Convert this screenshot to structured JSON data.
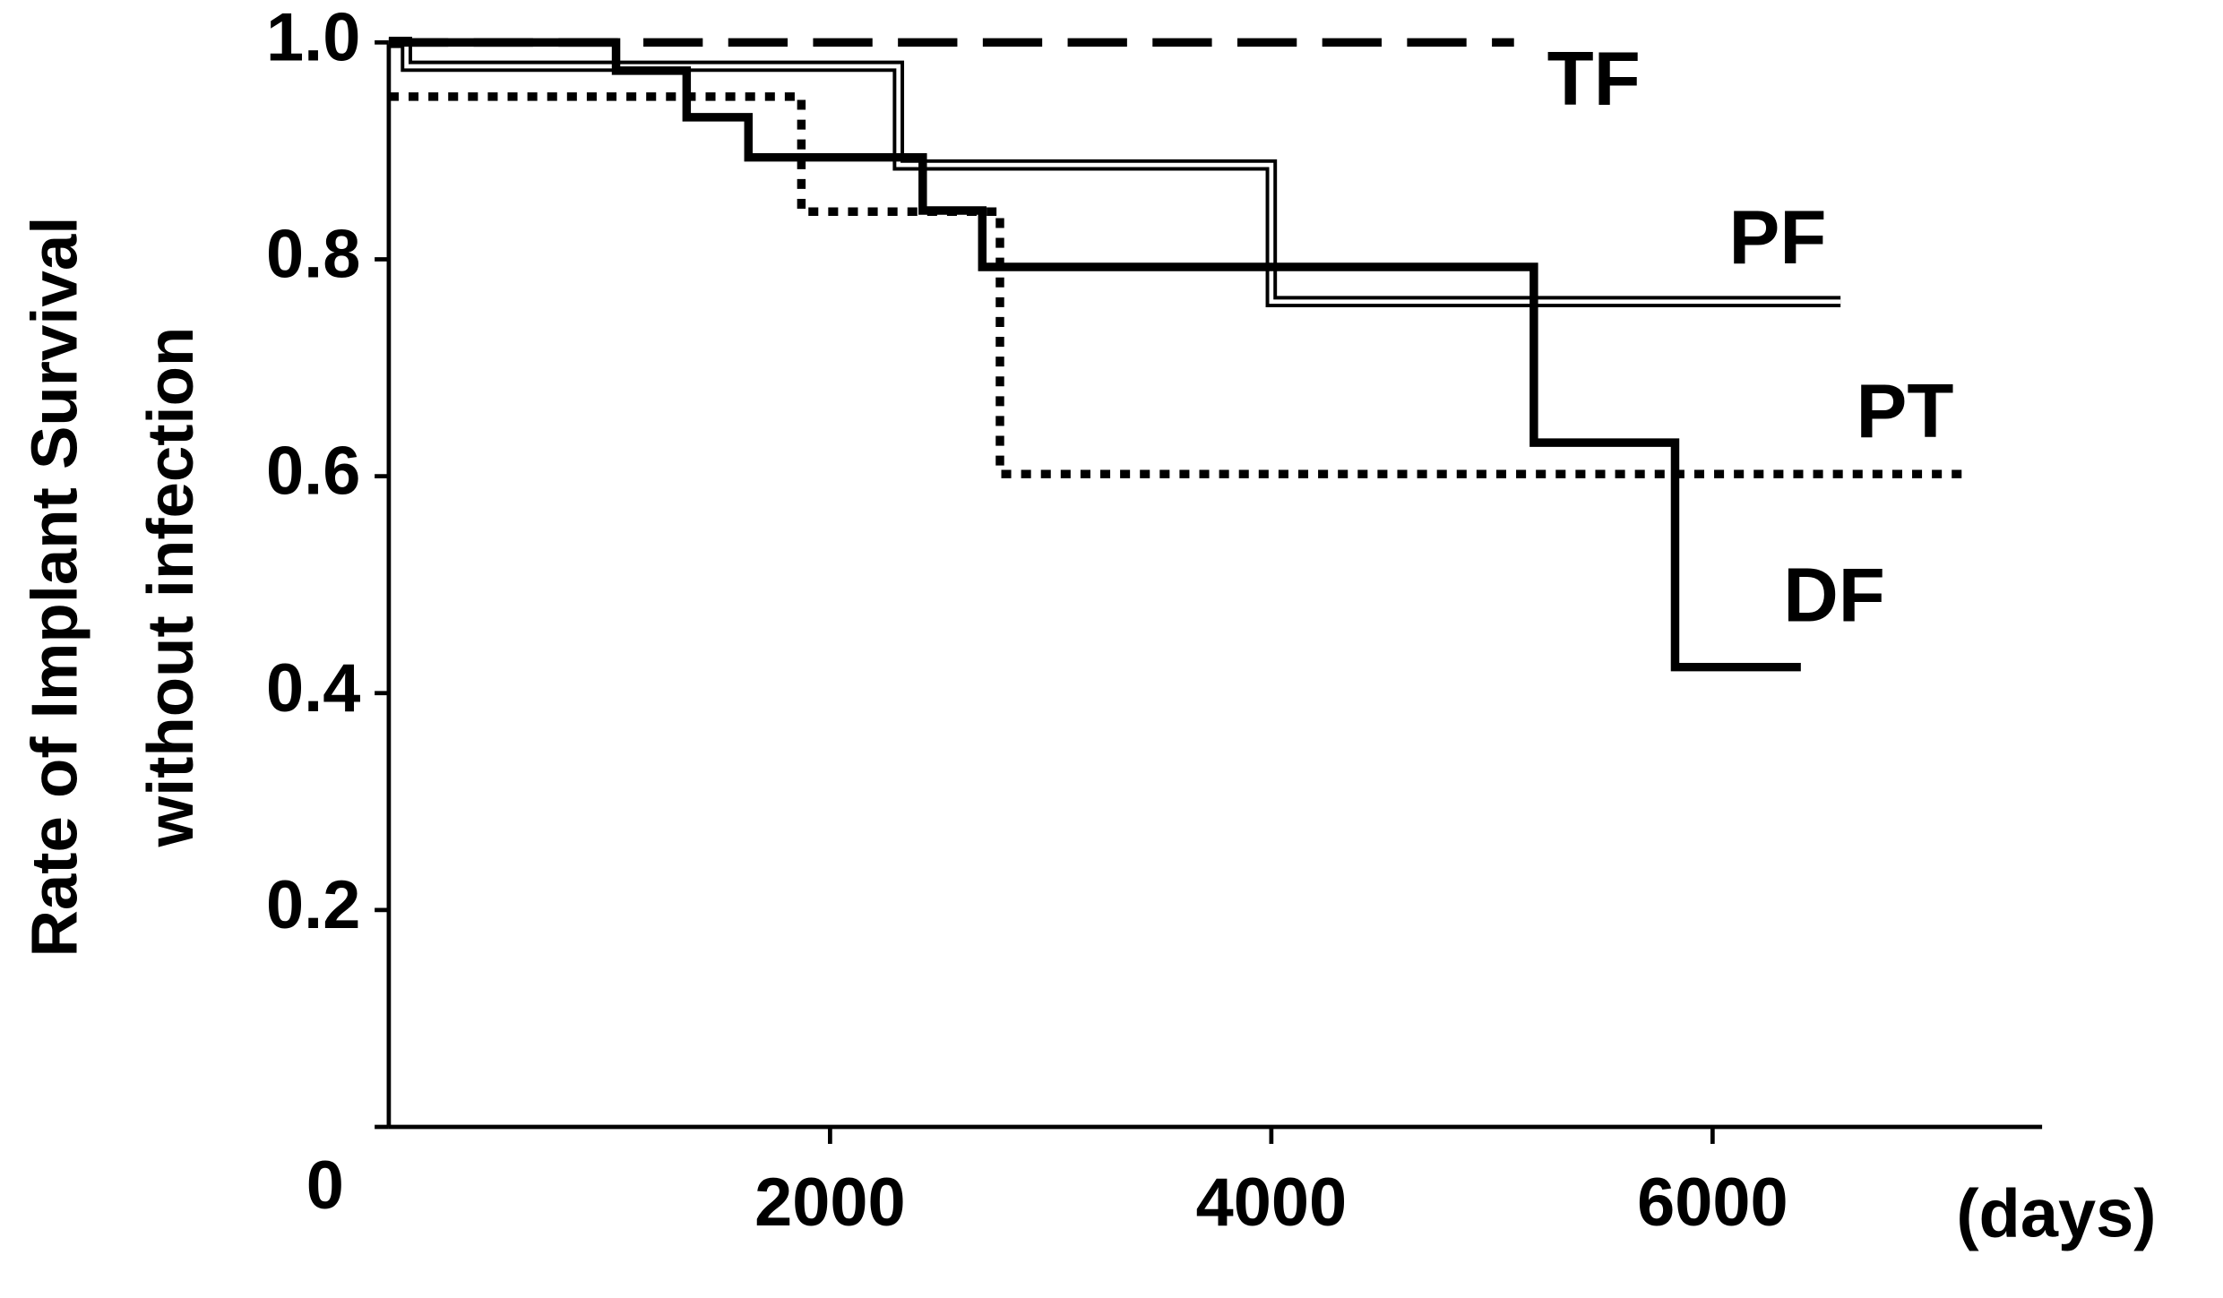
{
  "chart_data": {
    "type": "step",
    "y_label_lines": [
      "Rate of Implant Survival",
      "without infection"
    ],
    "x_label": "(days)",
    "xlim": [
      0,
      7500
    ],
    "xticks": [
      2000,
      4000,
      6000
    ],
    "ylim": [
      0,
      1
    ],
    "yticks": [
      0,
      0.2,
      0.4,
      0.6,
      0.8,
      {
        "value": 1,
        "label": "1.0"
      }
    ],
    "series": [
      {
        "name": "TF",
        "style": "dashed",
        "color": "#000000",
        "x": [
          0,
          5100
        ],
        "values": [
          1,
          1
        ]
      },
      {
        "name": "PF",
        "style": "double",
        "color": "#000000",
        "x": [
          0,
          80,
          2310,
          4000,
          6580
        ],
        "values": [
          1,
          0.978,
          0.887,
          0.761,
          0.761
        ]
      },
      {
        "name": "PT",
        "style": "dotted",
        "color": "#000000",
        "x": [
          0,
          1870,
          2770,
          7160
        ],
        "values": [
          0.95,
          0.844,
          0.602,
          0.602
        ]
      },
      {
        "name": "DF",
        "style": "solid",
        "color": "#000000",
        "x": [
          0,
          1030,
          1350,
          1630,
          2420,
          2690,
          5190,
          5830,
          6400
        ],
        "values": [
          1,
          0.974,
          0.931,
          0.894,
          0.845,
          0.793,
          0.631,
          0.424,
          0.424
        ]
      }
    ]
  }
}
